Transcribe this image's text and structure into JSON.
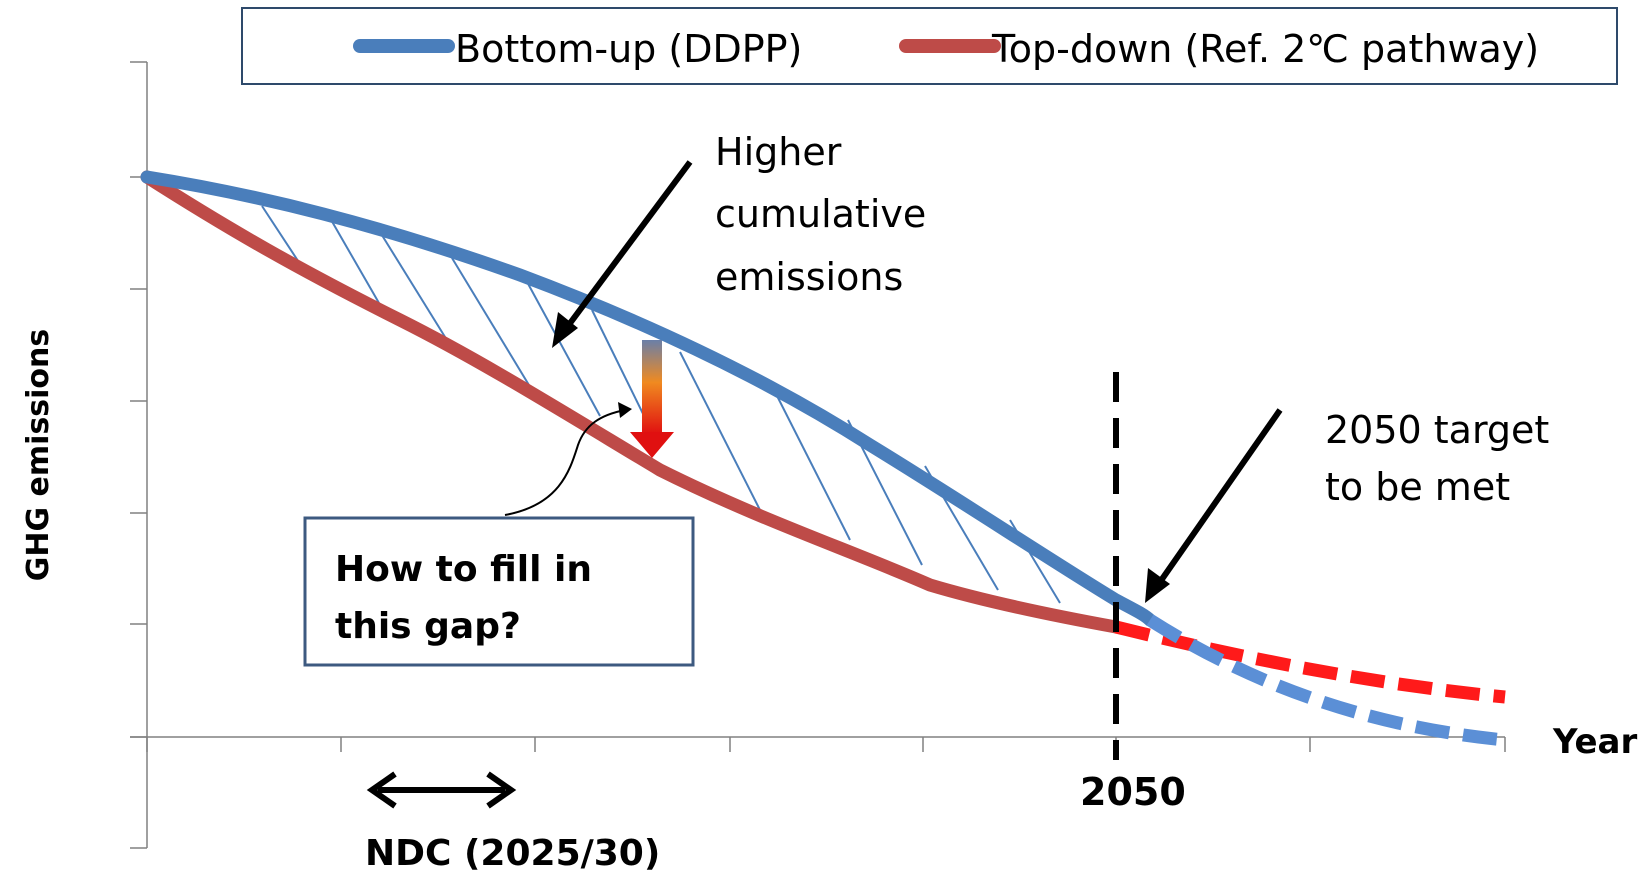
{
  "legend": {
    "items": [
      {
        "label": "Bottom-up (DDPP)",
        "color": "#4a7ebb"
      },
      {
        "label": "Top-down (Ref. 2℃ pathway)",
        "color": "#be4b48"
      }
    ]
  },
  "axes": {
    "y_label": "GHG emissions",
    "x_label": "Year",
    "x_tick_2050": "2050"
  },
  "annotations": {
    "higher_cumulative": [
      "Higher",
      "cumulative",
      "emissions"
    ],
    "target": [
      "2050 target",
      "to be met"
    ],
    "gap_box": [
      "How to fill in",
      "this gap?"
    ],
    "ndc": "NDC (2025/30)"
  },
  "colors": {
    "bottom_up": "#4a7ebb",
    "bottom_up_dashed": "#5b8fd6",
    "top_down": "#be4b48",
    "top_down_dashed": "#ff1a1a",
    "hatch": "#4a7ebb",
    "box_border": "#3d5a80",
    "legend_border": "#2e4a6b"
  }
}
